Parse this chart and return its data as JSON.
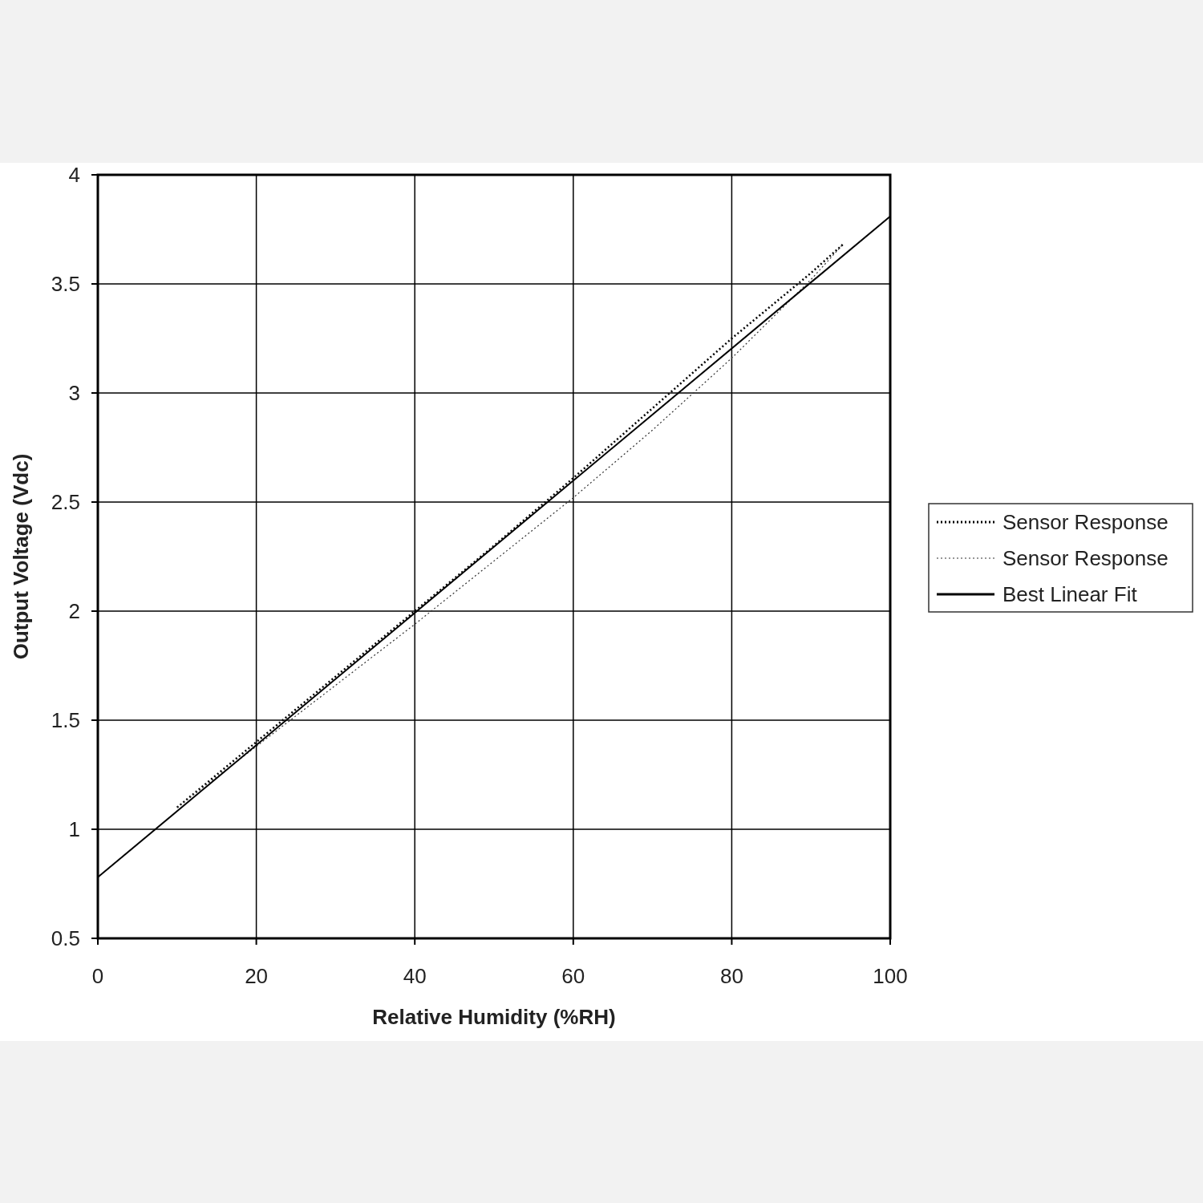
{
  "chart_data": {
    "type": "line",
    "xlabel": "Relative Humidity (%RH)",
    "ylabel": "Output Voltage (Vdc)",
    "xlim": [
      0,
      100
    ],
    "xticks": [
      0,
      20,
      40,
      60,
      80,
      100
    ],
    "ylim": [
      0.5,
      4
    ],
    "yticks": [
      0.5,
      1,
      1.5,
      2,
      2.5,
      3,
      3.5,
      4
    ],
    "grid": true,
    "legend": "right",
    "series": [
      {
        "name": "Sensor Response",
        "color": "#000000",
        "line_style": "dotted",
        "x": [
          10,
          20,
          30,
          40,
          50,
          60,
          70,
          80,
          90,
          94
        ],
        "values": [
          1.1,
          1.4,
          1.7,
          2.0,
          2.3,
          2.61,
          2.93,
          3.25,
          3.55,
          3.68
        ]
      },
      {
        "name": "Sensor Response",
        "color": "#333333",
        "line_style": "dotted",
        "x": [
          10,
          20,
          30,
          40,
          50,
          60,
          70,
          80,
          90,
          94
        ],
        "values": [
          1.1,
          1.38,
          1.66,
          1.94,
          2.23,
          2.52,
          2.83,
          3.16,
          3.52,
          3.68
        ]
      },
      {
        "name": "Best Linear Fit",
        "color": "#000000",
        "line_style": "solid",
        "x": [
          0,
          100
        ],
        "values": [
          0.78,
          3.81
        ]
      }
    ]
  }
}
